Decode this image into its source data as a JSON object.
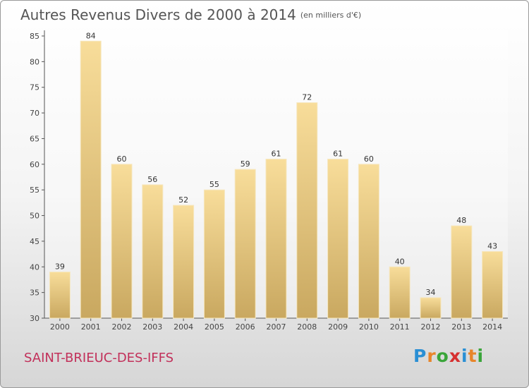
{
  "chart_data": {
    "type": "bar",
    "title": "Autres Revenus Divers de 2000 à 2014",
    "unit": "(en milliers d'€)",
    "categories": [
      "2000",
      "2001",
      "2002",
      "2003",
      "2004",
      "2005",
      "2006",
      "2007",
      "2008",
      "2009",
      "2010",
      "2011",
      "2012",
      "2013",
      "2014"
    ],
    "values": [
      39,
      84,
      60,
      56,
      52,
      55,
      59,
      61,
      72,
      61,
      60,
      40,
      34,
      48,
      43
    ],
    "ylim": [
      30,
      85
    ],
    "yticks": [
      30,
      35,
      40,
      45,
      50,
      55,
      60,
      65,
      70,
      75,
      80,
      85
    ],
    "grid": false,
    "bar_color": "#e8c97a"
  },
  "place_name": "SAINT-BRIEUC-DES-IFFS",
  "logo": {
    "text": "Proxiti",
    "letter_colors": [
      "#2a8fd4",
      "#e8852a",
      "#3aa53a",
      "#d63030",
      "#2a8fd4",
      "#e8852a",
      "#3aa53a"
    ]
  }
}
